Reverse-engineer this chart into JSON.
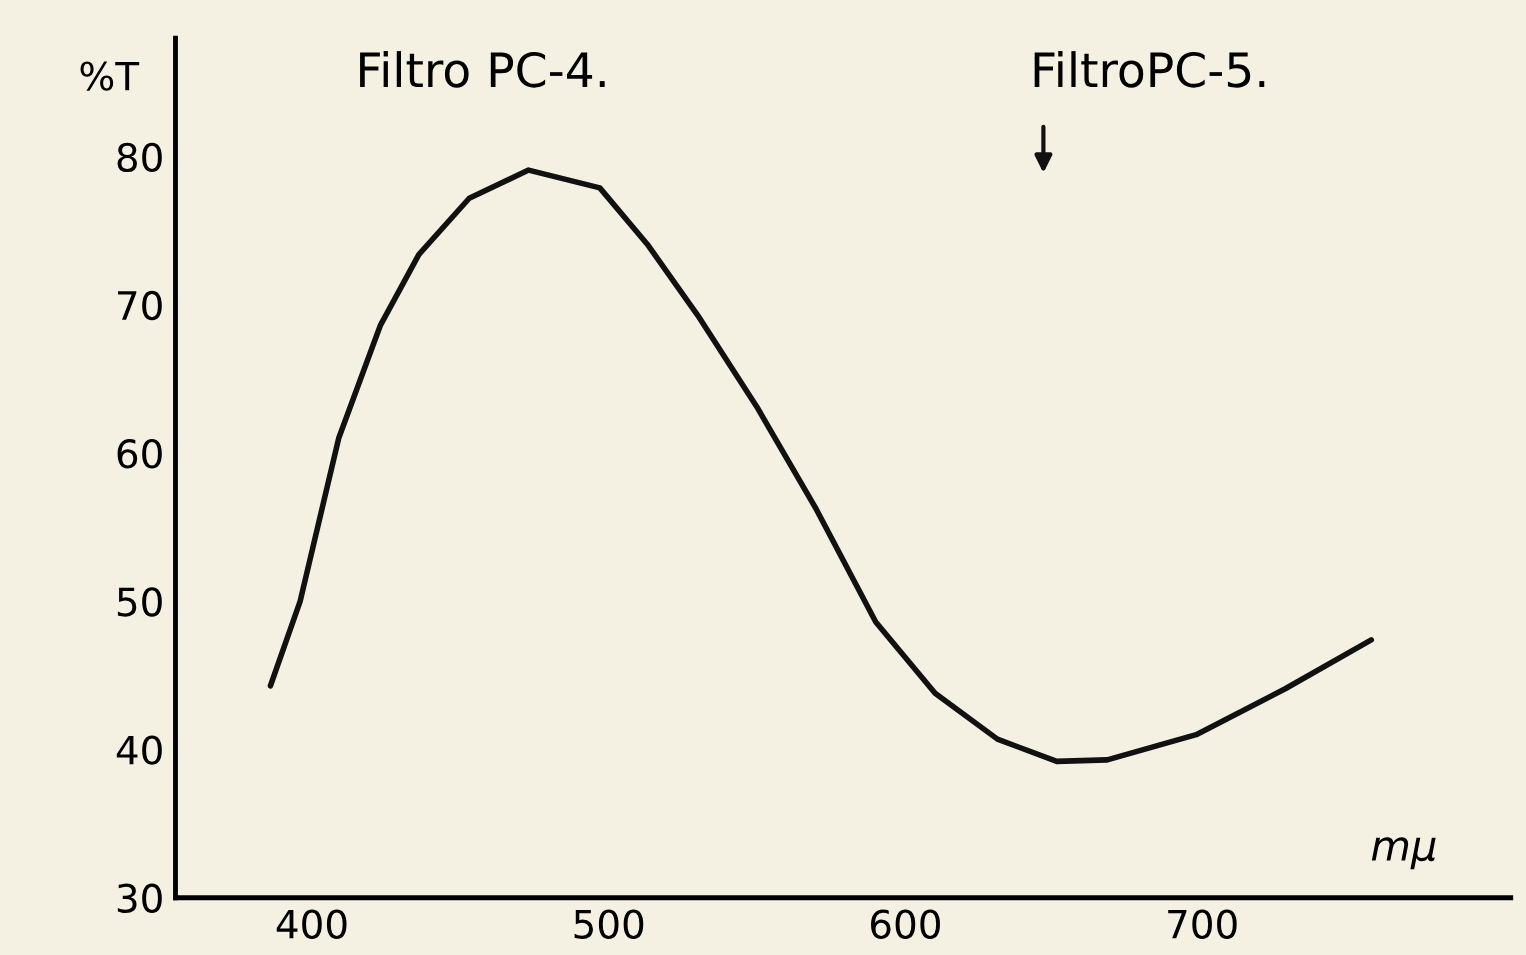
{
  "chart_data": {
    "type": "line",
    "xlabel": "mμ",
    "ylabel": "%T",
    "annotations": [
      "Filtro PC-4.",
      "FiltroPC-5."
    ],
    "x": [
      386,
      396,
      409,
      423,
      436,
      453,
      473,
      497,
      513,
      530,
      550,
      570,
      590,
      610,
      631,
      651,
      668,
      698,
      728,
      757
    ],
    "series": [
      {
        "color": "#111111",
        "values": [
          44.3,
          50,
          61,
          68.6,
          73.4,
          77.2,
          79.1,
          77.9,
          74.1,
          69.3,
          63.1,
          56.2,
          48.6,
          43.8,
          40.7,
          39.2,
          39.3,
          41.0,
          44.1,
          47.4
        ]
      }
    ],
    "xlim": [
      354,
      804
    ],
    "ylim": [
      30,
      88
    ],
    "xticks": [
      400,
      500,
      600,
      700
    ],
    "yticks": [
      30,
      40,
      50,
      60,
      70,
      80
    ],
    "grid": false,
    "marker": "none",
    "line_style": "solid",
    "legend": false
  }
}
